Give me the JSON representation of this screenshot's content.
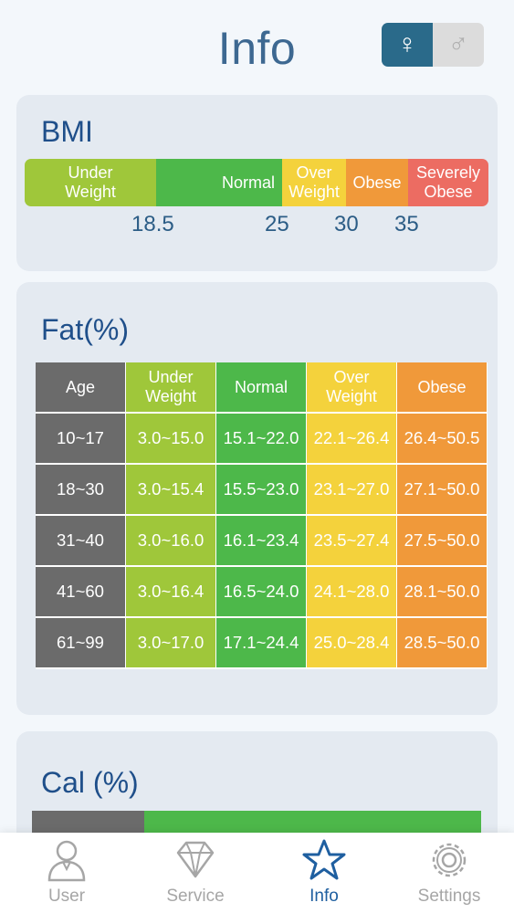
{
  "header": {
    "title": "Info",
    "gender": {
      "female_symbol": "♀",
      "male_symbol": "♂",
      "selected": "female"
    }
  },
  "bmi": {
    "title": "BMI",
    "segments": [
      {
        "label": "Under Weight",
        "color": "#9fc73a"
      },
      {
        "label": "Normal",
        "color": "#4db84a"
      },
      {
        "label": "Over Weight",
        "color": "#f4d23c"
      },
      {
        "label": "Obese",
        "color": "#f0993a"
      },
      {
        "label": "Severely Obese",
        "color": "#ec6c62"
      }
    ],
    "thresholds": [
      "18.5",
      "25",
      "30",
      "35"
    ]
  },
  "fat": {
    "title": "Fat(%)",
    "headers": [
      "Age",
      "Under Weight",
      "Normal",
      "Over Weight",
      "Obese"
    ],
    "rows": [
      [
        "10~17",
        "3.0~15.0",
        "15.1~22.0",
        "22.1~26.4",
        "26.4~50.5"
      ],
      [
        "18~30",
        "3.0~15.4",
        "15.5~23.0",
        "23.1~27.0",
        "27.1~50.0"
      ],
      [
        "31~40",
        "3.0~16.0",
        "16.1~23.4",
        "23.5~27.4",
        "27.5~50.0"
      ],
      [
        "41~60",
        "3.0~16.4",
        "16.5~24.0",
        "24.1~28.0",
        "28.1~50.0"
      ],
      [
        "61~99",
        "3.0~17.0",
        "17.1~24.4",
        "25.0~28.4",
        "28.5~50.0"
      ]
    ]
  },
  "cal": {
    "title": "Cal (%)"
  },
  "nav": {
    "items": [
      {
        "label": "User",
        "icon": "user-icon"
      },
      {
        "label": "Service",
        "icon": "diamond-icon"
      },
      {
        "label": "Info",
        "icon": "star-icon",
        "active": true
      },
      {
        "label": "Settings",
        "icon": "gear-icon"
      }
    ],
    "active_color": "#1f5fa0",
    "inactive_color": "#a6a6a6"
  }
}
